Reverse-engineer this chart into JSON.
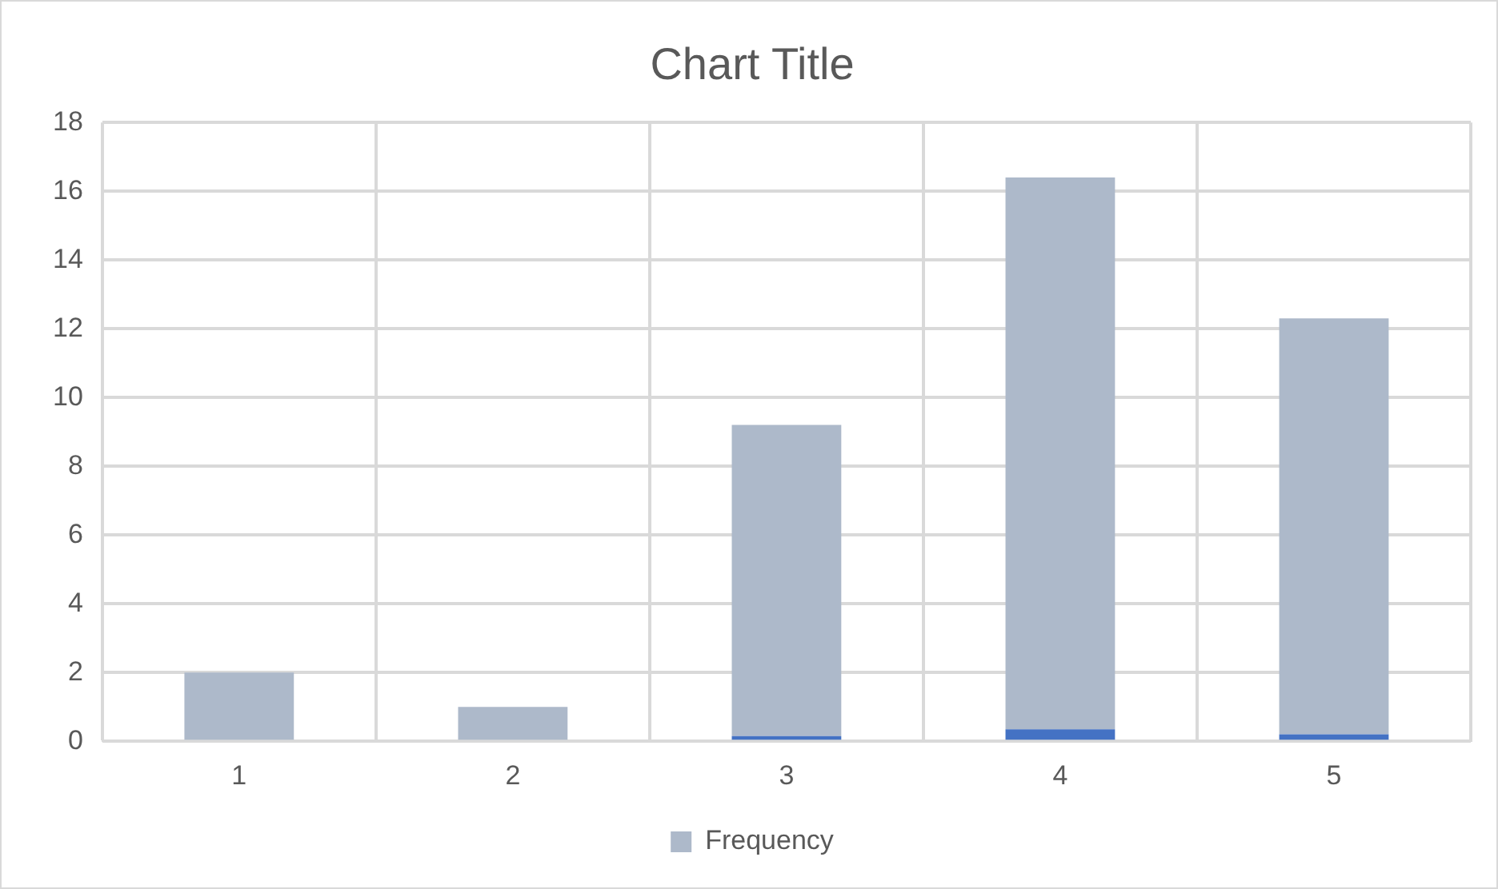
{
  "chart_data": {
    "type": "bar",
    "title": "Chart Title",
    "stacked": true,
    "categories": [
      "1",
      "2",
      "3",
      "4",
      "5"
    ],
    "series": [
      {
        "color": "#4472c4",
        "values": [
          0,
          0,
          0.15,
          0.35,
          0.2
        ]
      },
      {
        "name": "Frequency",
        "color": "#adb9ca",
        "values": [
          2.0,
          1.0,
          9.05,
          16.05,
          12.1
        ]
      }
    ],
    "ylim": [
      0,
      18
    ],
    "yticks": [
      0,
      2,
      4,
      6,
      8,
      10,
      12,
      14,
      16,
      18
    ],
    "grid": true,
    "legend": "bottom"
  }
}
